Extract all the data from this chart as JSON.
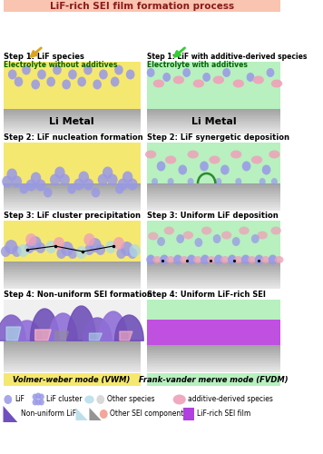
{
  "title": "LiF-rich SEI film formation process",
  "title_bg": "#f9c4b0",
  "title_color": "#8B1A1A",
  "left_bg": "#f5e870",
  "right_bg": "#b8f0c0",
  "metal_top": "#d8d8d8",
  "metal_bot": "#a0a0a0",
  "lif_color": "#9898e8",
  "lif_dark": "#7070c8",
  "additive_color": "#f0a0b8",
  "other_blue": "#add8e6",
  "other_gray": "#909090",
  "sei_purple": "#9b59d0",
  "sei_film_color": "#c050e0",
  "left_label": "Volmer-weber mode (VWM)",
  "right_label": "Frank-vander merwe mode (FVDM)",
  "step1_left_a": "Step 1: LiF species",
  "step1_left_b": "Electrolyte without additives",
  "step1_right_a": "Step 1: LiF with additive-derived species",
  "step1_right_b": "Electrolyte with additives",
  "step2_left": "Step 2: LiF nucleation formation",
  "step2_right": "Step 2: LiF synergetic deposition",
  "step3_left": "Step 3: LiF cluster precipitation",
  "step3_right": "Step 3: Uniform LiF deposition",
  "step4_left": "Step 4: Non-uniform SEI formation",
  "step4_right": "Step 4: Uniform LiF-rich SEI",
  "leg1": "LiF",
  "leg2": "LiF cluster",
  "leg3": "Other species",
  "leg4": "additive-derived species",
  "leg5": "Non-uniform LiF",
  "leg6": "Other SEI components",
  "leg7": "LiF-rich SEI film"
}
